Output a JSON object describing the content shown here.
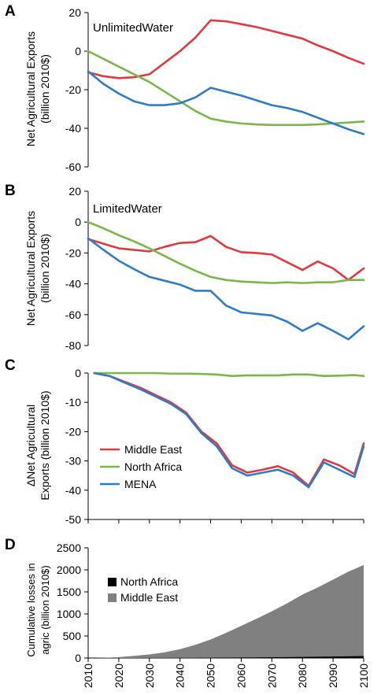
{
  "colors": {
    "middle_east": "#e0393e",
    "north_africa": "#7ab648",
    "mena": "#2e7cc4",
    "area_middle_east": "#808080",
    "area_north_africa": "#000000",
    "axis": "#000000"
  },
  "x_ticks": [
    "2010",
    "2020",
    "2030",
    "2040",
    "2050",
    "2060",
    "2070",
    "2080",
    "2090",
    "2100"
  ],
  "chart_data": [
    {
      "panel": "A",
      "type": "line",
      "annotation": "UnlimitedWater",
      "ylabel": [
        "Net Agricultural Exports",
        "(billion 2010$)"
      ],
      "yticks": [
        "20",
        "0",
        "-20",
        "-40",
        "-60"
      ],
      "ylim": [
        -60,
        20
      ],
      "xlim": [
        2010,
        2100
      ],
      "x": [
        2010,
        2015,
        2020,
        2025,
        2030,
        2035,
        2040,
        2045,
        2050,
        2055,
        2060,
        2065,
        2070,
        2075,
        2080,
        2085,
        2090,
        2095,
        2100
      ],
      "series": [
        {
          "key": "middle_east",
          "values": [
            -11,
            -13,
            -14,
            -13.5,
            -12,
            -6,
            0,
            7,
            16,
            15.5,
            14,
            12.5,
            10.5,
            8.5,
            6.5,
            3,
            0,
            -3.5,
            -6.5
          ]
        },
        {
          "key": "north_africa",
          "values": [
            0,
            -4,
            -8,
            -12,
            -16,
            -21,
            -26,
            -31,
            -35,
            -36.5,
            -37.5,
            -38,
            -38.3,
            -38.3,
            -38.3,
            -38,
            -37.5,
            -37,
            -36.5
          ]
        },
        {
          "key": "mena",
          "values": [
            -10.5,
            -17,
            -22,
            -26,
            -28,
            -28,
            -27,
            -24,
            -19,
            -21,
            -23,
            -25.5,
            -28,
            -29.5,
            -31.5,
            -34.5,
            -37.5,
            -40.5,
            -43
          ]
        }
      ]
    },
    {
      "panel": "B",
      "type": "line",
      "annotation": "LimitedWater",
      "ylabel": [
        "Net Agricultural Exports",
        "(billion 2010$)"
      ],
      "yticks": [
        "20",
        "0",
        "-20",
        "-40",
        "-60",
        "-80"
      ],
      "ylim": [
        -80,
        20
      ],
      "xlim": [
        2010,
        2100
      ],
      "x": [
        2010,
        2015,
        2020,
        2025,
        2030,
        2035,
        2040,
        2045,
        2050,
        2055,
        2060,
        2065,
        2070,
        2075,
        2080,
        2085,
        2090,
        2095,
        2100
      ],
      "series": [
        {
          "key": "middle_east",
          "values": [
            -11,
            -14,
            -17,
            -18,
            -19,
            -16,
            -13.5,
            -13,
            -9,
            -16,
            -19.5,
            -20,
            -21,
            -26,
            -31,
            -25.5,
            -30,
            -37.5,
            -30
          ]
        },
        {
          "key": "north_africa",
          "values": [
            0,
            -4,
            -8.5,
            -12.5,
            -17,
            -22,
            -27,
            -31.5,
            -35.5,
            -37.5,
            -38.5,
            -39,
            -39.5,
            -39,
            -39.5,
            -39,
            -39,
            -37.5,
            -37.5
          ]
        },
        {
          "key": "mena",
          "values": [
            -10.5,
            -18,
            -25,
            -30.5,
            -35.5,
            -38,
            -40.5,
            -44.5,
            -44.5,
            -54,
            -58.5,
            -59.5,
            -60.5,
            -64.5,
            -70.5,
            -65.5,
            -70.5,
            -76,
            -67.5
          ]
        }
      ]
    },
    {
      "panel": "C",
      "type": "line",
      "ylabel": [
        "ΔNet Agricultural",
        "Exports (billion 2010$)"
      ],
      "yticks": [
        "0",
        "-10",
        "-20",
        "-30",
        "-40",
        "-50"
      ],
      "ylim": [
        -50,
        0
      ],
      "xlim": [
        2010,
        2100
      ],
      "legend_placement": "lower-left",
      "x": [
        2012,
        2017,
        2022,
        2027,
        2032,
        2037,
        2042,
        2047,
        2052,
        2057,
        2062,
        2067,
        2072,
        2077,
        2082,
        2087,
        2092,
        2097,
        2100
      ],
      "series": [
        {
          "key": "middle_east",
          "name": "Middle East",
          "values": [
            0,
            -1,
            -3,
            -5,
            -7.5,
            -10,
            -13.5,
            -20,
            -24,
            -31.5,
            -34,
            -33,
            -31.8,
            -34,
            -38.5,
            -29.5,
            -31.5,
            -34.5,
            -24
          ]
        },
        {
          "key": "north_africa",
          "name": "North Africa",
          "values": [
            0,
            0,
            0,
            0,
            0,
            -0.2,
            -0.2,
            -0.3,
            -0.5,
            -1,
            -0.8,
            -0.8,
            -0.8,
            -0.5,
            -0.5,
            -1,
            -0.9,
            -0.7,
            -1
          ]
        },
        {
          "key": "mena",
          "name": "MENA",
          "values": [
            0,
            -1,
            -3.3,
            -5.5,
            -8,
            -10.5,
            -14,
            -20.5,
            -25,
            -32.5,
            -35,
            -34,
            -33,
            -35,
            -39,
            -30.5,
            -33,
            -35.5,
            -25
          ]
        }
      ]
    },
    {
      "panel": "D",
      "type": "area",
      "ylabel": [
        "Cumulative losses in",
        "agric (billion 2010$)"
      ],
      "yticks": [
        "2500",
        "2000",
        "1500",
        "1000",
        "500",
        "0"
      ],
      "ylim": [
        0,
        2500
      ],
      "xlim": [
        2010,
        2100
      ],
      "legend_placement": "top-left",
      "x": [
        2012,
        2015,
        2020,
        2025,
        2030,
        2035,
        2040,
        2045,
        2050,
        2055,
        2060,
        2065,
        2070,
        2075,
        2080,
        2085,
        2090,
        2095,
        2100
      ],
      "series": [
        {
          "key": "area_north_africa",
          "name": "North Africa",
          "values": [
            0,
            0,
            0,
            1,
            2,
            3,
            4,
            5,
            7,
            9,
            11,
            14,
            17,
            20,
            24,
            28,
            33,
            38,
            44
          ]
        },
        {
          "key": "area_middle_east",
          "name": "Middle East",
          "values": [
            0,
            5,
            20,
            50,
            80,
            130,
            200,
            300,
            420,
            570,
            730,
            890,
            1060,
            1240,
            1440,
            1600,
            1780,
            1960,
            2110
          ]
        }
      ]
    }
  ]
}
